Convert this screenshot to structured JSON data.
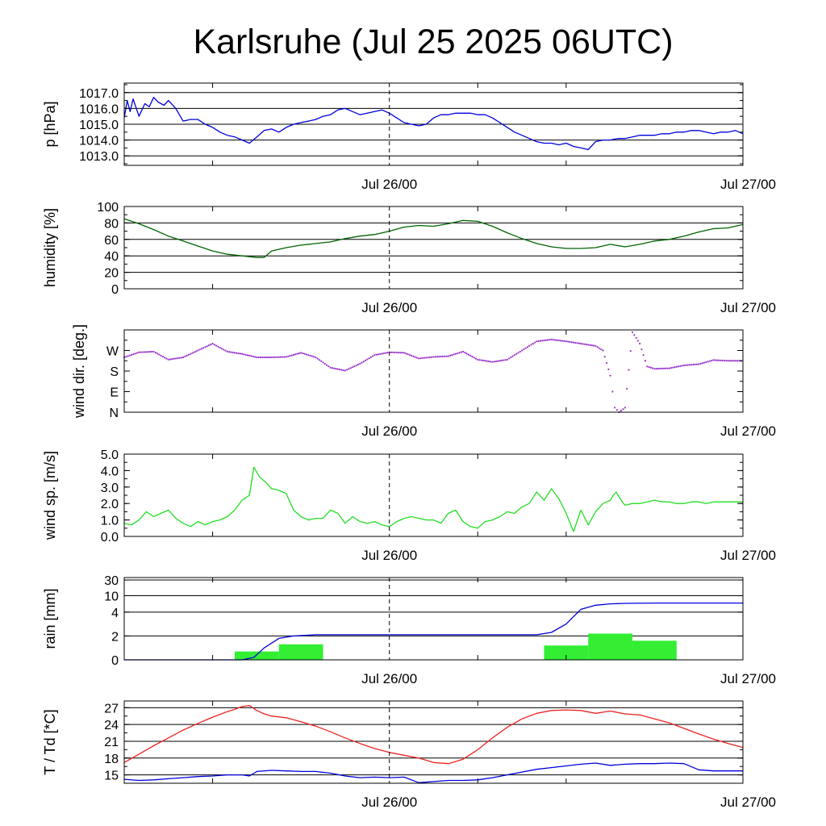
{
  "title": "Karlsruhe (Jul 25 2025 06UTC)",
  "x_ticks": [
    "Jul 26/00",
    "Jul 27/00"
  ],
  "chart_data": [
    {
      "type": "line",
      "ylabel": "p [hPa]",
      "ylim": [
        1012.4,
        1017.6
      ],
      "yticks": [
        "1017.0",
        "1016.0",
        "1015.0",
        "1014.0",
        "1013.0"
      ],
      "ytick_values": [
        1017,
        1016,
        1015,
        1014,
        1013
      ],
      "grid": true,
      "x_unit": "hours since Jul 25 06UTC",
      "xlim": [
        0,
        42
      ],
      "series": [
        {
          "color": "#0000dd",
          "x": [
            0,
            0.2,
            0.4,
            0.6,
            1.0,
            1.4,
            1.7,
            2.0,
            2.3,
            2.7,
            3.0,
            3.5,
            4.0,
            4.5,
            5.0,
            5.5,
            6.0,
            6.5,
            7.0,
            7.5,
            8.0,
            8.5,
            9.0,
            9.5,
            10.0,
            10.5,
            11.0,
            11.5,
            12.0,
            12.5,
            13.0,
            13.5,
            14.0,
            14.5,
            15.0,
            15.5,
            16.0,
            16.5,
            17.0,
            17.5,
            18.0,
            18.5,
            19.0,
            19.5,
            20.0,
            20.5,
            21.0,
            21.5,
            22.0,
            22.5,
            23.0,
            23.5,
            24.0,
            24.5,
            25.0,
            25.5,
            26.0,
            26.5,
            27.0,
            27.5,
            28.0,
            28.5,
            29.0,
            29.5,
            30.0,
            30.5,
            31.0,
            31.5,
            32.0,
            32.5,
            33.0,
            33.5,
            34.0,
            34.5,
            35.0,
            35.5,
            36.0,
            36.5,
            37.0,
            37.5,
            38.0,
            38.5,
            39.0,
            39.5,
            40.0,
            40.5,
            41.0,
            41.5,
            42.0
          ],
          "y": [
            1015.4,
            1016.5,
            1015.8,
            1016.6,
            1015.5,
            1016.3,
            1016.1,
            1016.7,
            1016.4,
            1016.2,
            1016.5,
            1016.0,
            1015.2,
            1015.3,
            1015.3,
            1015.0,
            1014.8,
            1014.5,
            1014.3,
            1014.2,
            1014.0,
            1013.8,
            1014.2,
            1014.6,
            1014.7,
            1014.5,
            1014.8,
            1015.0,
            1015.1,
            1015.2,
            1015.3,
            1015.5,
            1015.6,
            1015.9,
            1016.0,
            1015.8,
            1015.6,
            1015.7,
            1015.8,
            1015.9,
            1015.7,
            1015.4,
            1015.1,
            1015.0,
            1014.9,
            1015.0,
            1015.4,
            1015.6,
            1015.6,
            1015.7,
            1015.7,
            1015.7,
            1015.6,
            1015.6,
            1015.4,
            1015.1,
            1014.8,
            1014.5,
            1014.3,
            1014.1,
            1013.9,
            1013.8,
            1013.8,
            1013.7,
            1013.8,
            1013.6,
            1013.5,
            1013.4,
            1013.9,
            1014.0,
            1014.0,
            1014.1,
            1014.1,
            1014.2,
            1014.3,
            1014.3,
            1014.3,
            1014.4,
            1014.4,
            1014.5,
            1014.5,
            1014.6,
            1014.6,
            1014.5,
            1014.4,
            1014.5,
            1014.5,
            1014.6,
            1014.4
          ]
        }
      ]
    },
    {
      "type": "line",
      "ylabel": "humidity [%]",
      "ylim": [
        0,
        100
      ],
      "yticks": [
        "100",
        "80",
        "60",
        "40",
        "20",
        "0"
      ],
      "ytick_values": [
        100,
        80,
        60,
        40,
        20,
        0
      ],
      "grid": true,
      "x_unit": "hours since Jul 25 06UTC",
      "xlim": [
        0,
        42
      ],
      "series": [
        {
          "color": "#006400",
          "x": [
            0,
            1,
            2,
            3,
            4,
            5,
            6,
            7,
            8,
            9,
            9.5,
            10,
            11,
            12,
            13,
            14,
            15,
            16,
            17,
            18,
            19,
            20,
            21,
            22,
            23,
            24,
            25,
            26,
            27,
            28,
            29,
            30,
            31,
            32,
            33,
            34,
            35,
            36,
            37,
            38,
            39,
            40,
            41,
            42
          ],
          "y": [
            85,
            79,
            72,
            64,
            58,
            52,
            46,
            42,
            40,
            38,
            38,
            46,
            50,
            53,
            55,
            57,
            61,
            64,
            66,
            70,
            75,
            77,
            76,
            79,
            83,
            82,
            76,
            68,
            61,
            55,
            51,
            49,
            49,
            50,
            54,
            51,
            54,
            58,
            60,
            64,
            69,
            73,
            74,
            78
          ]
        }
      ]
    },
    {
      "type": "scatter",
      "ylabel": "wind dir. [deg.]",
      "ylim": [
        0,
        360
      ],
      "yticks": [
        "W",
        "S",
        "E",
        "N"
      ],
      "ytick_values": [
        270,
        180,
        90,
        0
      ],
      "grid": false,
      "x_unit": "hours since Jul 25 06UTC",
      "xlim": [
        0,
        42
      ],
      "series": [
        {
          "color": "#9932cc",
          "x": [
            0,
            1,
            2,
            3,
            4,
            5,
            6,
            7,
            8,
            9,
            10,
            11,
            12,
            13,
            14,
            15,
            16,
            17,
            18,
            19,
            20,
            21,
            22,
            23,
            24,
            25,
            26,
            27,
            28,
            29,
            30,
            31,
            32,
            32.5,
            33,
            33.3,
            33.6,
            34,
            34.5,
            35,
            35.5,
            36,
            37,
            38,
            39,
            40,
            41,
            42
          ],
          "y": [
            240,
            262,
            265,
            230,
            240,
            270,
            300,
            265,
            255,
            240,
            240,
            242,
            260,
            240,
            195,
            182,
            212,
            250,
            262,
            260,
            235,
            242,
            245,
            265,
            230,
            220,
            230,
            270,
            310,
            318,
            310,
            300,
            290,
            270,
            160,
            20,
            0,
            20,
            350,
            300,
            200,
            190,
            192,
            205,
            210,
            228,
            225,
            225
          ]
        }
      ]
    },
    {
      "type": "line",
      "ylabel": "wind sp. [m/s]",
      "ylim": [
        0,
        5
      ],
      "yticks": [
        "5.0",
        "4.0",
        "3.0",
        "2.0",
        "1.0",
        "0.0"
      ],
      "ytick_values": [
        5,
        4,
        3,
        2,
        1,
        0
      ],
      "grid": false,
      "x_unit": "hours since Jul 25 06UTC",
      "xlim": [
        0,
        42
      ],
      "series": [
        {
          "color": "#22dd22",
          "x": [
            0,
            0.5,
            1,
            1.5,
            2,
            2.5,
            3,
            3.5,
            4,
            4.5,
            5,
            5.5,
            6,
            6.5,
            7,
            7.5,
            8,
            8.5,
            8.8,
            9.2,
            9.6,
            10,
            10.5,
            11,
            11.5,
            12,
            12.5,
            13,
            13.5,
            14,
            14.5,
            15,
            15.5,
            16,
            16.5,
            17,
            17.5,
            18,
            18.5,
            19,
            19.5,
            20,
            20.5,
            21,
            21.5,
            22,
            22.5,
            23,
            23.5,
            24,
            24.5,
            25,
            25.5,
            26,
            26.5,
            27,
            27.5,
            28,
            28.5,
            29,
            29.5,
            30,
            30.5,
            31,
            31.5,
            32,
            32.5,
            33,
            33.2,
            33.4,
            33.6,
            33.8,
            34,
            34.5,
            35,
            35.5,
            36,
            36.5,
            37,
            37.5,
            38,
            38.5,
            39,
            39.5,
            40,
            40.5,
            41,
            41.5,
            42
          ],
          "y": [
            0.8,
            0.7,
            1.0,
            1.5,
            1.2,
            1.4,
            1.6,
            1.1,
            0.8,
            0.6,
            0.9,
            0.7,
            0.9,
            1.0,
            1.2,
            1.6,
            2.2,
            2.5,
            4.2,
            3.6,
            3.3,
            2.9,
            2.8,
            2.6,
            1.6,
            1.2,
            1.0,
            1.1,
            1.1,
            1.6,
            1.4,
            0.8,
            1.2,
            0.9,
            0.8,
            0.9,
            0.7,
            0.6,
            0.9,
            1.1,
            1.2,
            1.1,
            1.0,
            1.0,
            0.8,
            1.4,
            1.6,
            0.9,
            0.6,
            0.5,
            0.9,
            1.0,
            1.2,
            1.5,
            1.4,
            1.8,
            2.0,
            2.7,
            2.2,
            2.9,
            2.3,
            1.4,
            0.3,
            1.6,
            0.7,
            1.5,
            2.0,
            2.2,
            2.5,
            2.7,
            2.4,
            2.1,
            1.9,
            2.0,
            2.0,
            2.1,
            2.2,
            2.1,
            2.1,
            2.0,
            2.0,
            2.1,
            2.1,
            2.0,
            2.1,
            2.1,
            2.1,
            2.1,
            2.1
          ]
        }
      ]
    },
    {
      "type": "bar",
      "ylabel": "rain [mm]",
      "yticks": [
        "30",
        "10",
        "4",
        "2",
        "0"
      ],
      "ytick_values": [
        30,
        10,
        4,
        2,
        0
      ],
      "grid": true,
      "x_unit": "hours since Jul 25 06UTC",
      "xlim": [
        0,
        42
      ],
      "bars": {
        "color": "#33ee33",
        "x0": [
          7.5,
          10.5,
          28.5,
          31.5,
          34.5
        ],
        "x1": [
          10.5,
          13.5,
          31.5,
          34.5,
          37.5
        ],
        "values": [
          0.7,
          1.3,
          1.2,
          2.2,
          1.6
        ]
      },
      "series": [
        {
          "name": "accumulated",
          "color": "#0000dd",
          "x": [
            0,
            8,
            8.8,
            9.5,
            10.5,
            11.5,
            13,
            17,
            20,
            28,
            29,
            30,
            31,
            32,
            33,
            34,
            36,
            42
          ],
          "y": [
            0,
            0,
            0.2,
            1.0,
            1.8,
            2.0,
            2.1,
            2.1,
            2.1,
            2.1,
            2.3,
            3.0,
            5.0,
            6.5,
            7.0,
            7.2,
            7.3,
            7.3
          ]
        }
      ]
    },
    {
      "type": "line",
      "ylabel": "T / Td [*C]",
      "ylim": [
        13.5,
        28.2
      ],
      "yticks": [
        "27",
        "24",
        "21",
        "18",
        "15"
      ],
      "ytick_values": [
        27,
        24,
        21,
        18,
        15
      ],
      "grid": true,
      "x_unit": "hours since Jul 25 06UTC",
      "xlim": [
        0,
        42
      ],
      "series": [
        {
          "name": "T",
          "color": "#ee2222",
          "x": [
            0,
            1,
            2,
            3,
            4,
            5,
            6,
            7,
            7.5,
            8,
            8.5,
            9,
            9.5,
            10,
            11,
            12,
            13,
            14,
            15,
            16,
            17,
            18,
            19,
            20,
            21,
            22,
            23,
            24,
            25,
            26,
            27,
            28,
            29,
            30,
            31,
            32,
            33,
            34,
            35,
            36,
            37,
            38,
            39,
            40,
            41,
            42
          ],
          "y": [
            17.2,
            18.7,
            20.2,
            21.6,
            23.0,
            24.2,
            25.3,
            26.3,
            26.7,
            27.2,
            27.4,
            26.5,
            25.9,
            25.5,
            25.2,
            24.5,
            23.7,
            22.7,
            21.6,
            20.6,
            19.7,
            19.0,
            18.5,
            18.0,
            17.2,
            17.0,
            17.8,
            19.5,
            21.6,
            23.5,
            25.0,
            26.0,
            26.5,
            26.6,
            26.5,
            26.0,
            26.4,
            25.9,
            25.7,
            25.0,
            24.3,
            23.3,
            22.3,
            21.4,
            20.6,
            19.9
          ]
        },
        {
          "name": "Td",
          "color": "#0000dd",
          "x": [
            0,
            1,
            2,
            3,
            4,
            5,
            6,
            7,
            8,
            8.5,
            9,
            10,
            11,
            12,
            13,
            14,
            15,
            16,
            17,
            18,
            19,
            20,
            21,
            22,
            23,
            24,
            25,
            26,
            27,
            28,
            29,
            30,
            31,
            32,
            33,
            34,
            35,
            36,
            37,
            38,
            39,
            40,
            41,
            42
          ],
          "y": [
            14.2,
            14.0,
            14.1,
            14.3,
            14.5,
            14.7,
            14.8,
            15.0,
            15.0,
            14.8,
            15.6,
            15.8,
            15.7,
            15.6,
            15.6,
            15.3,
            14.8,
            14.5,
            14.6,
            14.5,
            14.6,
            13.6,
            13.8,
            14.0,
            14.0,
            14.1,
            14.5,
            15.0,
            15.5,
            16.0,
            16.3,
            16.6,
            16.9,
            17.1,
            16.7,
            16.9,
            17.0,
            17.0,
            17.1,
            17.0,
            15.9,
            15.7,
            15.7,
            15.7
          ]
        }
      ]
    }
  ]
}
